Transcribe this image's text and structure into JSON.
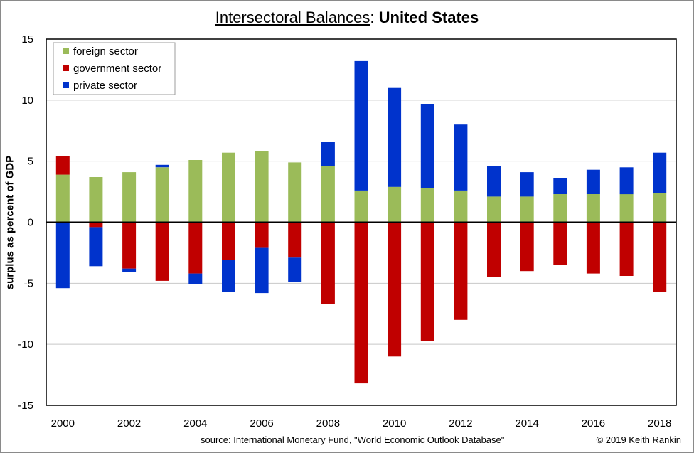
{
  "title": {
    "part1": "Intersectoral Balances",
    "part2": ":",
    "part3": "United States"
  },
  "footer": {
    "source": "source:  International Monetary Fund, \"World Economic Outlook Database\"",
    "credit": "© 2019 Keith Rankin"
  },
  "chart_data": {
    "type": "bar",
    "stacked": true,
    "ylabel": "surplus as percent of GDP",
    "xlabel": "",
    "ylim": [
      -15,
      15
    ],
    "yticks": [
      15,
      10,
      5,
      0,
      -5,
      -10,
      -15
    ],
    "categories": [
      2000,
      2001,
      2002,
      2003,
      2004,
      2005,
      2006,
      2007,
      2008,
      2009,
      2010,
      2011,
      2012,
      2013,
      2014,
      2015,
      2016,
      2017,
      2018
    ],
    "xtick_labels": [
      "2000",
      "2002",
      "2004",
      "2006",
      "2008",
      "2010",
      "2012",
      "2014",
      "2016",
      "2018"
    ],
    "legend_position": "top-left",
    "grid": true,
    "series": [
      {
        "name": "foreign sector",
        "color": "#9BBB59",
        "values": [
          3.9,
          3.7,
          4.1,
          4.5,
          5.1,
          5.7,
          5.8,
          4.9,
          4.6,
          2.6,
          2.9,
          2.8,
          2.6,
          2.1,
          2.1,
          2.3,
          2.3,
          2.3,
          2.4
        ]
      },
      {
        "name": "government sector",
        "color": "#C00000",
        "values": [
          1.5,
          -0.4,
          -3.8,
          -4.8,
          -4.2,
          -3.1,
          -2.1,
          -2.9,
          -6.7,
          -13.2,
          -11.0,
          -9.7,
          -8.0,
          -4.5,
          -4.0,
          -3.5,
          -4.2,
          -4.4,
          -5.7
        ]
      },
      {
        "name": "private sector",
        "color": "#0033CC",
        "values": [
          -5.4,
          -3.2,
          -0.3,
          0.2,
          -0.9,
          -2.6,
          -3.7,
          -2.0,
          2.0,
          10.6,
          8.1,
          6.9,
          5.4,
          2.5,
          2.0,
          1.3,
          2.0,
          2.2,
          3.3
        ]
      }
    ]
  }
}
